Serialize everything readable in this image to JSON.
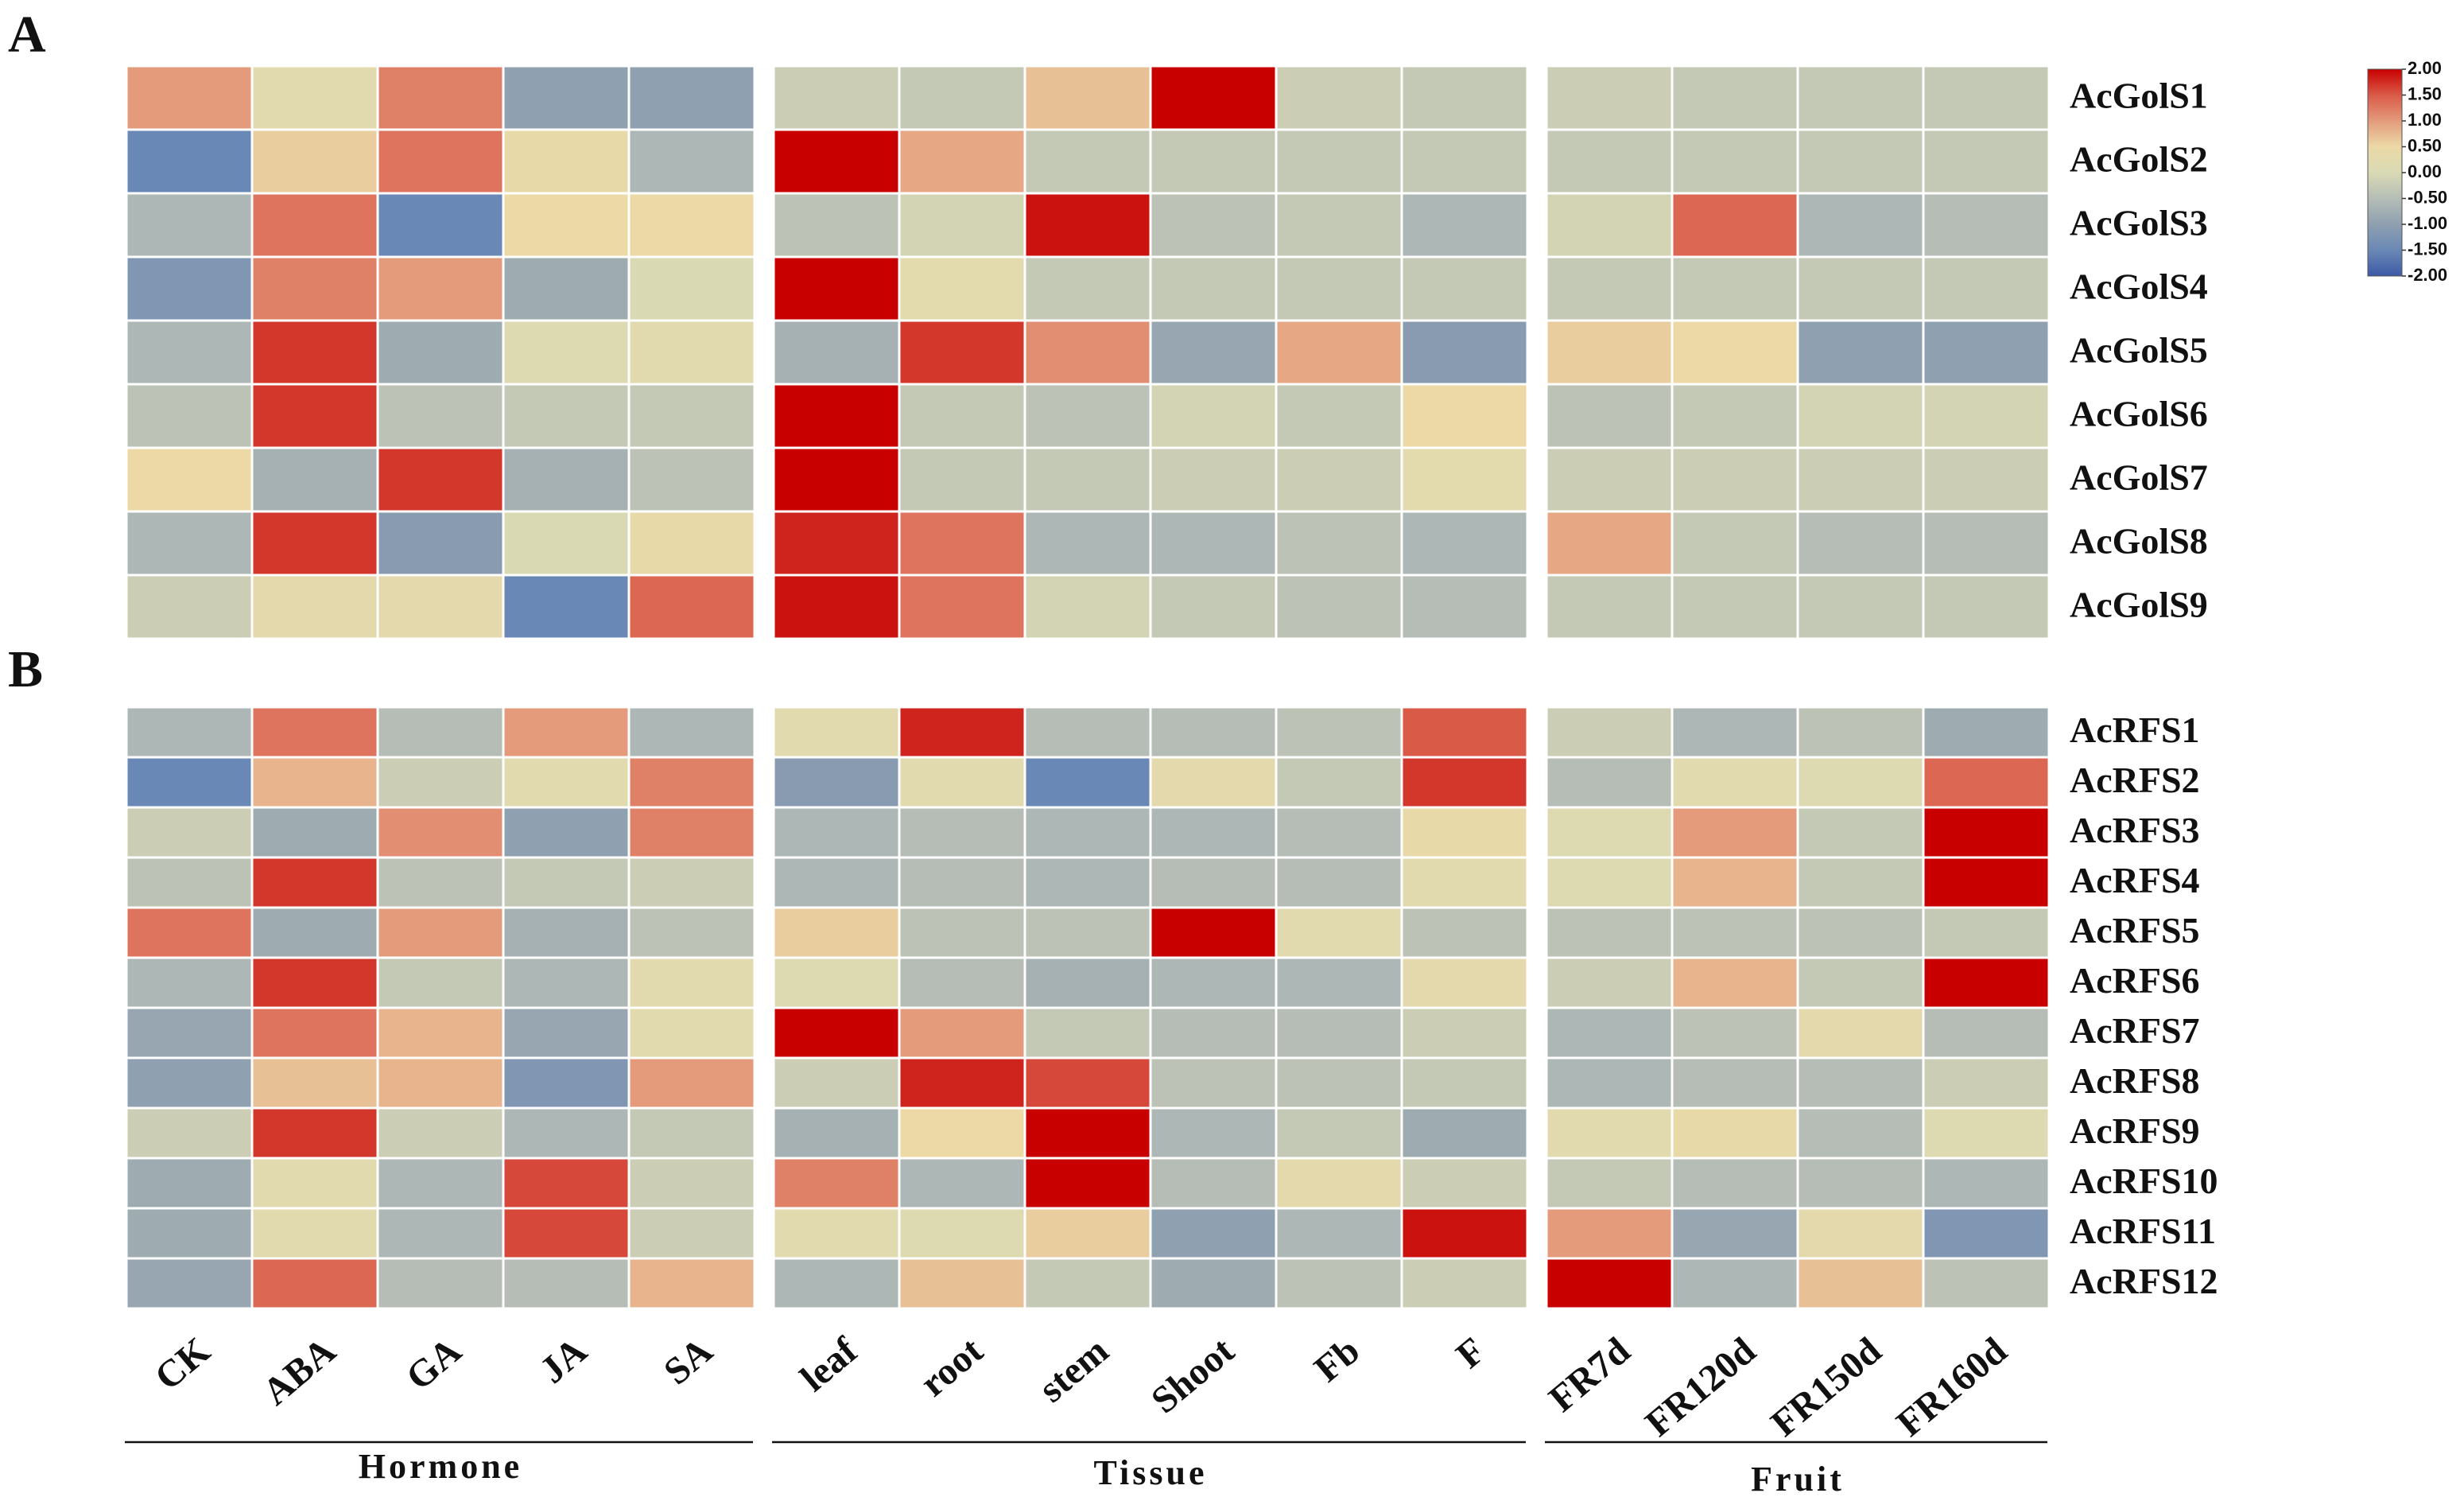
{
  "chart_data": {
    "type": "heatmap",
    "groups": [
      {
        "name": "Hormone",
        "categories": [
          "CK",
          "ABA",
          "GA",
          "JA",
          "SA"
        ]
      },
      {
        "name": "Tissue",
        "categories": [
          "leaf",
          "root",
          "stem",
          "Shoot",
          "Fb",
          "F"
        ]
      },
      {
        "name": "Fruit",
        "categories": [
          "FR7d",
          "FR120d",
          "FR150d",
          "FR160d"
        ]
      }
    ],
    "zlim": [
      -2,
      2
    ],
    "zticks": [
      {
        "value": -2,
        "label": "-2.00"
      },
      {
        "value": -1.5,
        "label": "-1.50"
      },
      {
        "value": -1,
        "label": "-1.00"
      },
      {
        "value": -0.5,
        "label": "-0.50"
      },
      {
        "value": 0,
        "label": "0.00"
      },
      {
        "value": 0.5,
        "label": "0.50"
      },
      {
        "value": 1,
        "label": "1.00"
      },
      {
        "value": 1.5,
        "label": "1.50"
      },
      {
        "value": 2,
        "label": "2.00"
      }
    ],
    "colors": [
      "#3c5aa6",
      "#6a88b5",
      "#8fa0b0",
      "#b5bdb6",
      "#d9dab4",
      "#ecd9a6",
      "#e39b7c",
      "#da5a48",
      "#c80000"
    ],
    "panels": [
      {
        "title": "A",
        "rows": [
          "AcGolS1",
          "AcGolS2",
          "AcGolS3",
          "AcGolS4",
          "AcGolS5",
          "AcGolS6",
          "AcGolS7",
          "AcGolS8",
          "AcGolS9"
        ],
        "values": [
          [
            1.0,
            0.2,
            1.2,
            -1.0,
            -1.0,
            -0.2,
            -0.3,
            0.7,
            2.0,
            -0.2,
            -0.3,
            -0.2,
            -0.3,
            -0.3,
            -0.3
          ],
          [
            -1.5,
            0.6,
            1.3,
            0.4,
            -0.6,
            2.0,
            0.9,
            -0.3,
            -0.3,
            -0.3,
            -0.3,
            -0.3,
            -0.3,
            -0.3,
            -0.3
          ],
          [
            -0.6,
            1.3,
            -1.5,
            0.5,
            0.5,
            -0.4,
            -0.1,
            1.9,
            -0.4,
            -0.3,
            -0.6,
            -0.1,
            1.4,
            -0.6,
            -0.5
          ],
          [
            -1.2,
            1.2,
            1.0,
            -0.8,
            0.0,
            2.0,
            0.25,
            -0.3,
            -0.3,
            -0.3,
            -0.3,
            -0.3,
            -0.3,
            -0.3,
            -0.3
          ],
          [
            -0.6,
            1.7,
            -0.8,
            0.1,
            0.2,
            -0.7,
            1.7,
            1.1,
            -0.9,
            0.9,
            -1.1,
            0.6,
            0.5,
            -1.0,
            -1.0
          ],
          [
            -0.4,
            1.7,
            -0.4,
            -0.3,
            -0.3,
            2.0,
            -0.3,
            -0.4,
            -0.1,
            -0.3,
            0.5,
            -0.4,
            -0.3,
            -0.1,
            -0.1
          ],
          [
            0.5,
            -0.7,
            1.7,
            -0.7,
            -0.4,
            2.0,
            -0.3,
            -0.3,
            -0.2,
            -0.2,
            0.25,
            -0.2,
            -0.2,
            -0.2,
            -0.2
          ],
          [
            -0.6,
            1.7,
            -1.1,
            0.0,
            0.4,
            1.8,
            1.3,
            -0.6,
            -0.6,
            -0.4,
            -0.6,
            0.9,
            -0.3,
            -0.5,
            -0.5
          ],
          [
            -0.2,
            0.3,
            0.3,
            -1.5,
            1.4,
            1.9,
            1.3,
            -0.1,
            -0.3,
            -0.4,
            -0.5,
            -0.3,
            -0.3,
            -0.3,
            -0.3
          ]
        ]
      },
      {
        "title": "B",
        "rows": [
          "AcRFS1",
          "AcRFS2",
          "AcRFS3",
          "AcRFS4",
          "AcRFS5",
          "AcRFS6",
          "AcRFS7",
          "AcRFS8",
          "AcRFS9",
          "AcRFS10",
          "AcRFS11",
          "AcRFS12"
        ],
        "values": [
          [
            -0.6,
            1.3,
            -0.5,
            1.0,
            -0.6,
            0.2,
            1.8,
            -0.5,
            -0.5,
            -0.4,
            1.5,
            -0.2,
            -0.6,
            -0.4,
            -0.8
          ],
          [
            -1.5,
            0.8,
            -0.2,
            0.2,
            1.2,
            -1.1,
            0.2,
            -1.5,
            0.3,
            -0.3,
            1.7,
            -0.5,
            0.2,
            0.1,
            1.4
          ],
          [
            -0.2,
            -0.8,
            1.1,
            -1.0,
            1.2,
            -0.6,
            -0.5,
            -0.6,
            -0.6,
            -0.5,
            0.4,
            0.1,
            1.0,
            -0.3,
            2.0
          ],
          [
            -0.4,
            1.7,
            -0.4,
            -0.3,
            -0.2,
            -0.6,
            -0.5,
            -0.6,
            -0.5,
            -0.5,
            0.2,
            0.1,
            0.8,
            -0.3,
            2.0
          ],
          [
            1.3,
            -0.8,
            1.0,
            -0.7,
            -0.4,
            0.6,
            -0.4,
            -0.4,
            2.0,
            0.2,
            -0.4,
            -0.4,
            -0.4,
            -0.4,
            -0.3
          ],
          [
            -0.6,
            1.7,
            -0.3,
            -0.6,
            0.2,
            0.1,
            -0.5,
            -0.7,
            -0.6,
            -0.6,
            0.3,
            -0.2,
            0.8,
            -0.3,
            2.0
          ],
          [
            -0.9,
            1.3,
            0.8,
            -0.9,
            0.2,
            2.0,
            1.0,
            -0.3,
            -0.5,
            -0.5,
            -0.2,
            -0.6,
            -0.4,
            0.3,
            -0.5
          ],
          [
            -1.0,
            0.7,
            0.8,
            -1.2,
            1.0,
            -0.2,
            1.8,
            1.6,
            -0.4,
            -0.4,
            -0.3,
            -0.6,
            -0.5,
            -0.5,
            -0.2
          ],
          [
            -0.2,
            1.7,
            -0.2,
            -0.6,
            -0.3,
            -0.7,
            0.5,
            2.0,
            -0.6,
            -0.3,
            -0.8,
            0.2,
            0.4,
            -0.5,
            0.1
          ],
          [
            -0.8,
            0.2,
            -0.6,
            1.6,
            -0.2,
            1.2,
            -0.6,
            2.0,
            -0.5,
            0.3,
            -0.2,
            -0.3,
            -0.5,
            -0.5,
            -0.6
          ],
          [
            -0.8,
            0.2,
            -0.6,
            1.6,
            -0.2,
            0.2,
            0.1,
            0.6,
            -1.0,
            -0.6,
            1.9,
            1.0,
            -0.9,
            0.3,
            -1.2
          ],
          [
            -0.9,
            1.4,
            -0.5,
            -0.5,
            0.8,
            -0.6,
            0.7,
            -0.3,
            -0.8,
            -0.4,
            -0.2,
            2.0,
            -0.6,
            0.7,
            -0.4
          ]
        ]
      }
    ]
  }
}
